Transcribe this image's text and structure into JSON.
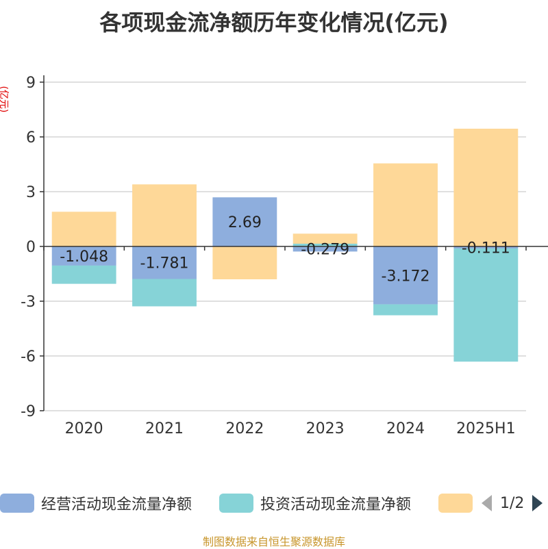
{
  "title": "各项现金流净额历年变化情况(亿元)",
  "ylabel_text": "(亿元)",
  "source": "制图数据来自恒生聚源数据库",
  "pager": {
    "text": "1/2",
    "prev_icon": "triangle-left-icon",
    "next_icon": "triangle-right-icon"
  },
  "colors": {
    "operating": "#8eaedd",
    "investing": "#86d3d7",
    "financing": "#fed898",
    "axis": "#333333",
    "grid": "#bfbfbf"
  },
  "chart_data": {
    "type": "bar",
    "stacked": true,
    "categories": [
      "2020",
      "2021",
      "2022",
      "2023",
      "2024",
      "2025H1"
    ],
    "ylim": [
      -9,
      9
    ],
    "yticks": [
      9,
      6,
      3,
      0,
      -3,
      -6,
      -9
    ],
    "grid": true,
    "legend_position": "bottom",
    "series": [
      {
        "name": "经营活动现金流量净额",
        "values": [
          -1.048,
          -1.781,
          2.69,
          -0.279,
          -3.172,
          -0.111
        ],
        "labels": [
          "-1.048",
          "-1.781",
          "2.69",
          "-0.279",
          "-3.172",
          "-0.111"
        ]
      },
      {
        "name": "投资活动现金流量净额",
        "values": [
          -1.0,
          -1.5,
          0.0,
          0.15,
          -0.6,
          -6.2
        ]
      },
      {
        "name": "",
        "values": [
          1.9,
          3.4,
          -1.8,
          0.55,
          4.55,
          6.45
        ]
      }
    ]
  }
}
